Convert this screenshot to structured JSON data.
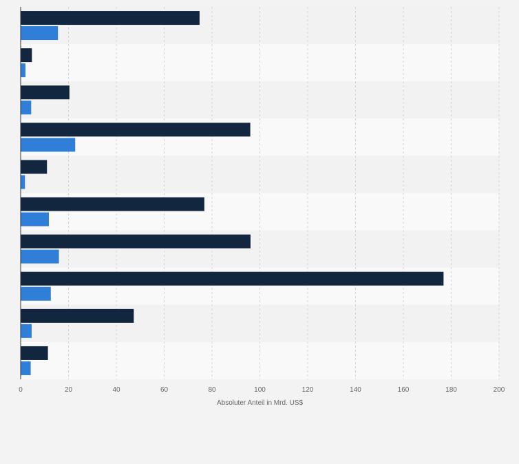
{
  "chart_data": {
    "type": "bar",
    "orientation": "horizontal",
    "title": "",
    "xlabel": "Absoluter Anteil in Mrd. US$",
    "ylabel": "",
    "xlim": [
      0,
      200
    ],
    "x_ticks": [
      "0",
      "20",
      "40",
      "60",
      "80",
      "100",
      "120",
      "140",
      "160",
      "180",
      "200"
    ],
    "grid": true,
    "legend": "none",
    "categories": [
      "",
      "",
      "",
      "",
      "",
      "",
      "",
      "",
      "",
      ""
    ],
    "series": [
      {
        "name": "Series 1",
        "color": "#12263f",
        "values": [
          74.8,
          4.7,
          20.4,
          96.0,
          11.0,
          76.8,
          96.1,
          176.8,
          47.3,
          11.4
        ]
      },
      {
        "name": "Series 2",
        "color": "#2f7ed8",
        "values": [
          15.6,
          2.0,
          4.4,
          22.8,
          1.8,
          11.8,
          16.0,
          12.6,
          4.6,
          4.2
        ]
      }
    ]
  }
}
